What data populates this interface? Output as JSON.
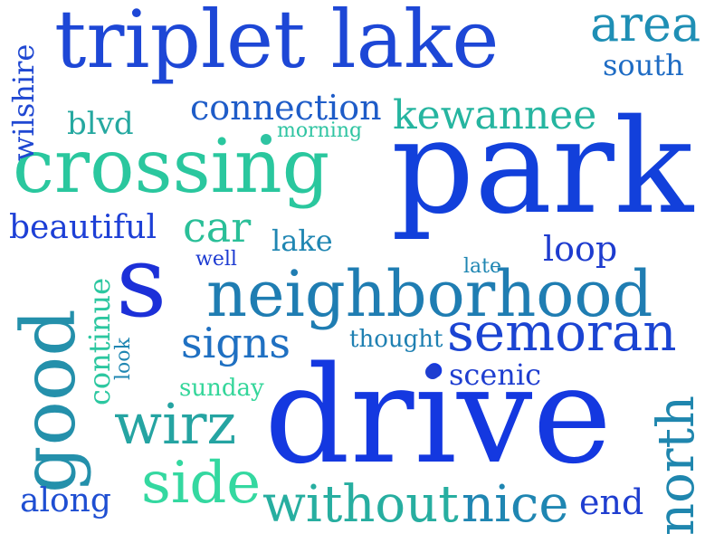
{
  "words": {
    "park": "park",
    "drive": "drive",
    "triplet_lake": "triplet lake",
    "crossing": "crossing",
    "neighborhood": "neighborhood",
    "s": "s",
    "good": "good",
    "semoran": "semoran",
    "north": "north",
    "area": "area",
    "south": "south",
    "connection": "connection",
    "kewannee": "kewannee",
    "wilshire": "wilshire",
    "blvd": "blvd",
    "morning": "morning",
    "beautiful": "beautiful",
    "car": "car",
    "lake": "lake",
    "loop": "loop",
    "well": "well",
    "late": "late",
    "continue": "continue",
    "look": "look",
    "signs": "signs",
    "thought": "thought",
    "scenic": "scenic",
    "sunday": "sunday",
    "wirz": "wirz",
    "side": "side",
    "along": "along",
    "without": "without",
    "nice": "nice",
    "end": "end"
  },
  "palette": {
    "deep_blue": "#1a3fd6",
    "royal_blue": "#2448d8",
    "medium_blue": "#1f5cc9",
    "steel_blue": "#1e7bb0",
    "teal": "#2495a6",
    "sea_green": "#22b59a",
    "mint": "#2fd39a"
  }
}
